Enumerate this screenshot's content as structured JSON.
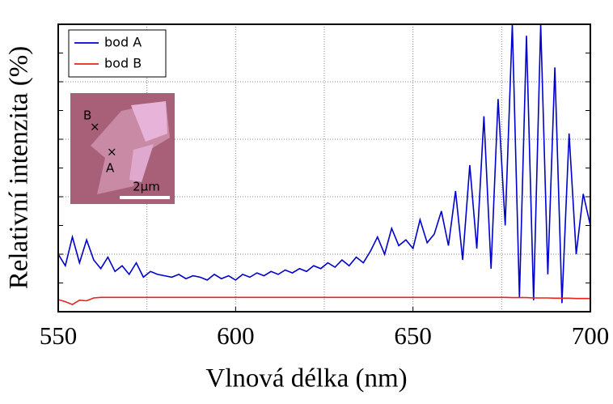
{
  "chart_data": {
    "type": "line",
    "x_label": "Vlnová délka (nm)",
    "y_label": "Relativní intenzita (%)",
    "x": [
      550,
      552,
      554,
      556,
      558,
      560,
      562,
      564,
      566,
      568,
      570,
      572,
      574,
      576,
      578,
      580,
      582,
      584,
      586,
      588,
      590,
      592,
      594,
      596,
      598,
      600,
      602,
      604,
      606,
      608,
      610,
      612,
      614,
      616,
      618,
      620,
      622,
      624,
      626,
      628,
      630,
      632,
      634,
      636,
      638,
      640,
      642,
      644,
      646,
      648,
      650,
      652,
      654,
      656,
      658,
      660,
      662,
      664,
      666,
      668,
      670,
      672,
      674,
      676,
      678,
      680,
      682,
      684,
      686,
      688,
      690,
      692,
      694,
      696,
      698,
      700
    ],
    "series": [
      {
        "name": "bod A",
        "color": "#0000cc",
        "values": [
          2.0,
          1.6,
          2.6,
          1.7,
          2.5,
          1.8,
          1.5,
          1.9,
          1.4,
          1.6,
          1.3,
          1.7,
          1.2,
          1.4,
          1.3,
          1.25,
          1.2,
          1.3,
          1.15,
          1.25,
          1.2,
          1.1,
          1.3,
          1.15,
          1.25,
          1.1,
          1.3,
          1.2,
          1.35,
          1.25,
          1.4,
          1.3,
          1.45,
          1.35,
          1.5,
          1.4,
          1.6,
          1.5,
          1.7,
          1.55,
          1.8,
          1.6,
          1.9,
          1.7,
          2.1,
          2.6,
          2.0,
          2.9,
          2.3,
          2.5,
          2.2,
          3.2,
          2.4,
          2.7,
          3.5,
          2.3,
          4.2,
          1.8,
          5.1,
          2.2,
          6.8,
          1.5,
          7.4,
          3.0,
          10,
          0.5,
          9.6,
          0.4,
          10,
          1.3,
          8.5,
          0.3,
          6.2,
          2.0,
          4.1,
          3.0
        ]
      },
      {
        "name": "bod B",
        "color": "#e8221c",
        "values": [
          0.42,
          0.35,
          0.25,
          0.4,
          0.38,
          0.48,
          0.5,
          0.5,
          0.5,
          0.5,
          0.5,
          0.5,
          0.5,
          0.5,
          0.5,
          0.5,
          0.5,
          0.5,
          0.5,
          0.5,
          0.5,
          0.5,
          0.5,
          0.5,
          0.5,
          0.5,
          0.5,
          0.5,
          0.5,
          0.5,
          0.5,
          0.5,
          0.5,
          0.5,
          0.5,
          0.5,
          0.5,
          0.5,
          0.5,
          0.5,
          0.5,
          0.5,
          0.5,
          0.5,
          0.5,
          0.5,
          0.5,
          0.5,
          0.5,
          0.5,
          0.5,
          0.5,
          0.5,
          0.5,
          0.5,
          0.5,
          0.5,
          0.5,
          0.5,
          0.5,
          0.5,
          0.5,
          0.5,
          0.5,
          0.49,
          0.49,
          0.49,
          0.48,
          0.48,
          0.48,
          0.47,
          0.47,
          0.47,
          0.46,
          0.46,
          0.46
        ]
      }
    ],
    "xlim": [
      550,
      700
    ],
    "xticks": [
      550,
      600,
      650,
      700
    ],
    "xgrid": [
      575,
      600,
      625,
      650,
      675
    ],
    "ylim": [
      0,
      10
    ],
    "yticks": [
      0,
      1,
      2,
      3,
      4,
      5,
      6,
      7,
      8,
      9,
      10
    ],
    "ygrid": [
      2,
      4,
      6,
      8
    ],
    "legend": "upper left",
    "inset": {
      "labels": [
        "B",
        "A"
      ],
      "scale": "2µm"
    }
  }
}
